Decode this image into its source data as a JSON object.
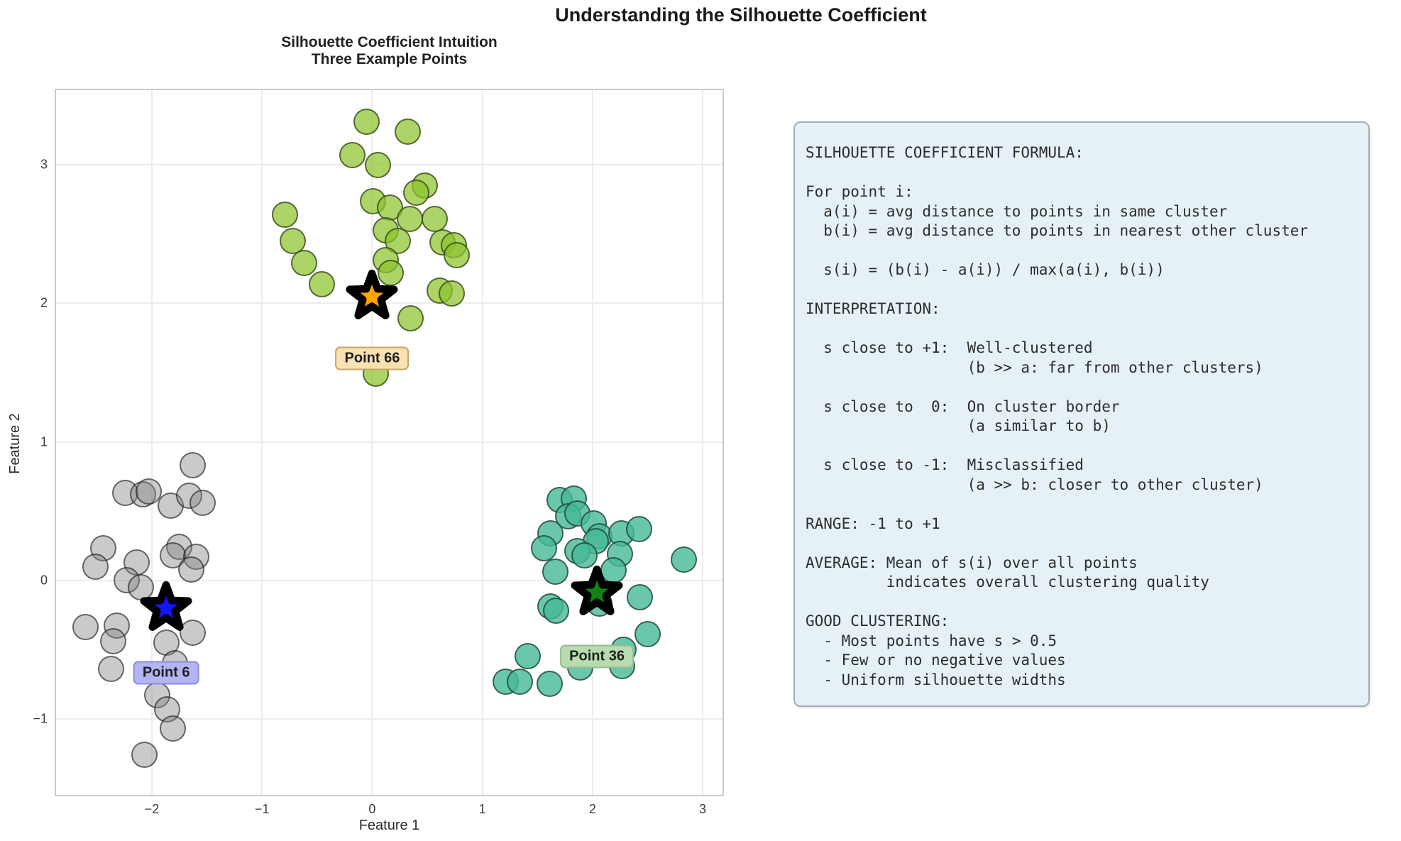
{
  "figure_title": "Understanding the Silhouette Coefficient",
  "chart_data": {
    "type": "scatter",
    "title": "Silhouette Coefficient Intuition\nThree Example Points",
    "xlabel": "Feature 1",
    "ylabel": "Feature 2",
    "xlim": [
      -2.87,
      3.18
    ],
    "ylim": [
      -1.55,
      3.54
    ],
    "grid": true,
    "legend_position": "none",
    "xticks": [
      [
        -2,
        "−2"
      ],
      [
        -1,
        "−1"
      ],
      [
        0,
        "0"
      ],
      [
        1,
        "1"
      ],
      [
        2,
        "2"
      ],
      [
        3,
        "3"
      ]
    ],
    "yticks": [
      [
        -1,
        "−1"
      ],
      [
        0,
        "0"
      ],
      [
        1,
        "1"
      ],
      [
        2,
        "2"
      ],
      [
        3,
        "3"
      ]
    ],
    "series": [
      {
        "name": "cluster-green",
        "color": "rgba(140,195,45,0.72)",
        "points": [
          [
            -0.05,
            3.31
          ],
          [
            0.32,
            3.24
          ],
          [
            -0.18,
            3.07
          ],
          [
            0.05,
            3.0
          ],
          [
            0.48,
            2.85
          ],
          [
            0.4,
            2.8
          ],
          [
            0.01,
            2.74
          ],
          [
            0.16,
            2.69
          ],
          [
            -0.79,
            2.64
          ],
          [
            0.34,
            2.61
          ],
          [
            0.57,
            2.61
          ],
          [
            0.12,
            2.53
          ],
          [
            -0.72,
            2.45
          ],
          [
            0.23,
            2.45
          ],
          [
            0.64,
            2.44
          ],
          [
            0.74,
            2.42
          ],
          [
            0.77,
            2.35
          ],
          [
            -0.62,
            2.29
          ],
          [
            0.12,
            2.31
          ],
          [
            0.17,
            2.22
          ],
          [
            -0.46,
            2.14
          ],
          [
            0.61,
            2.09
          ],
          [
            0.72,
            2.07
          ],
          [
            0.35,
            1.89
          ],
          [
            0.03,
            1.49
          ]
        ]
      },
      {
        "name": "cluster-gray",
        "color": "rgba(128,128,128,0.42)",
        "points": [
          [
            -1.63,
            0.83
          ],
          [
            -2.24,
            0.63
          ],
          [
            -2.08,
            0.62
          ],
          [
            -2.03,
            0.64
          ],
          [
            -1.83,
            0.54
          ],
          [
            -1.66,
            0.61
          ],
          [
            -1.54,
            0.56
          ],
          [
            -2.44,
            0.23
          ],
          [
            -2.51,
            0.1
          ],
          [
            -2.14,
            0.13
          ],
          [
            -1.75,
            0.24
          ],
          [
            -1.81,
            0.18
          ],
          [
            -1.6,
            0.17
          ],
          [
            -1.64,
            0.08
          ],
          [
            -2.23,
            0.0
          ],
          [
            -2.1,
            -0.05
          ],
          [
            -2.6,
            -0.34
          ],
          [
            -2.32,
            -0.33
          ],
          [
            -2.35,
            -0.44
          ],
          [
            -1.63,
            -0.38
          ],
          [
            -1.87,
            -0.45
          ],
          [
            -2.37,
            -0.64
          ],
          [
            -1.79,
            -0.6
          ],
          [
            -1.95,
            -0.83
          ],
          [
            -1.86,
            -0.93
          ],
          [
            -1.81,
            -1.07
          ],
          [
            -2.07,
            -1.26
          ]
        ]
      },
      {
        "name": "cluster-teal",
        "color": "rgba(70,185,150,0.8)",
        "points": [
          [
            1.7,
            0.58
          ],
          [
            1.83,
            0.59
          ],
          [
            1.78,
            0.46
          ],
          [
            1.86,
            0.48
          ],
          [
            2.01,
            0.41
          ],
          [
            1.62,
            0.34
          ],
          [
            2.06,
            0.32
          ],
          [
            2.03,
            0.28
          ],
          [
            2.26,
            0.34
          ],
          [
            2.42,
            0.37
          ],
          [
            1.56,
            0.23
          ],
          [
            1.86,
            0.21
          ],
          [
            1.93,
            0.18
          ],
          [
            2.25,
            0.19
          ],
          [
            2.83,
            0.15
          ],
          [
            1.66,
            0.06
          ],
          [
            2.19,
            0.07
          ],
          [
            2.43,
            -0.12
          ],
          [
            1.62,
            -0.19
          ],
          [
            1.67,
            -0.22
          ],
          [
            2.06,
            -0.17
          ],
          [
            2.5,
            -0.39
          ],
          [
            1.41,
            -0.55
          ],
          [
            2.28,
            -0.5
          ],
          [
            1.89,
            -0.63
          ],
          [
            2.27,
            -0.62
          ],
          [
            1.21,
            -0.73
          ],
          [
            1.34,
            -0.73
          ],
          [
            1.61,
            -0.75
          ]
        ]
      }
    ],
    "highlights": [
      {
        "label": "Point 66",
        "x": 0.0,
        "y": 2.05,
        "star_color": "#FFA500",
        "label_x": 0.0,
        "label_y": 1.6,
        "label_bg": "#f8e2b2",
        "label_border": "#c6a566"
      },
      {
        "label": "Point 6",
        "x": -1.87,
        "y": -0.2,
        "star_color": "#1414FF",
        "label_x": -1.87,
        "label_y": -0.67,
        "label_bg": "#b2b4f4",
        "label_border": "#8a8ede"
      },
      {
        "label": "Point 36",
        "x": 2.04,
        "y": -0.09,
        "star_color": "#128212",
        "label_x": 2.04,
        "label_y": -0.55,
        "label_bg": "#b7dcae",
        "label_border": "#97ba97"
      }
    ]
  },
  "info_box": {
    "text": "SILHOUETTE COEFFICIENT FORMULA:\n\nFor point i:\n  a(i) = avg distance to points in same cluster\n  b(i) = avg distance to points in nearest other cluster\n\n  s(i) = (b(i) - a(i)) / max(a(i), b(i))\n\nINTERPRETATION:\n\n  s close to +1:  Well-clustered\n                  (b >> a: far from other clusters)\n\n  s close to  0:  On cluster border\n                  (a similar to b)\n\n  s close to -1:  Misclassified\n                  (a >> b: closer to other cluster)\n\nRANGE: -1 to +1\n\nAVERAGE: Mean of s(i) over all points\n         indicates overall clustering quality\n\nGOOD CLUSTERING:\n  - Most points have s > 0.5\n  - Few or no negative values\n  - Uniform silhouette widths",
    "bg_color": "#e6f1f7",
    "border_color": "#9fb0ba"
  }
}
